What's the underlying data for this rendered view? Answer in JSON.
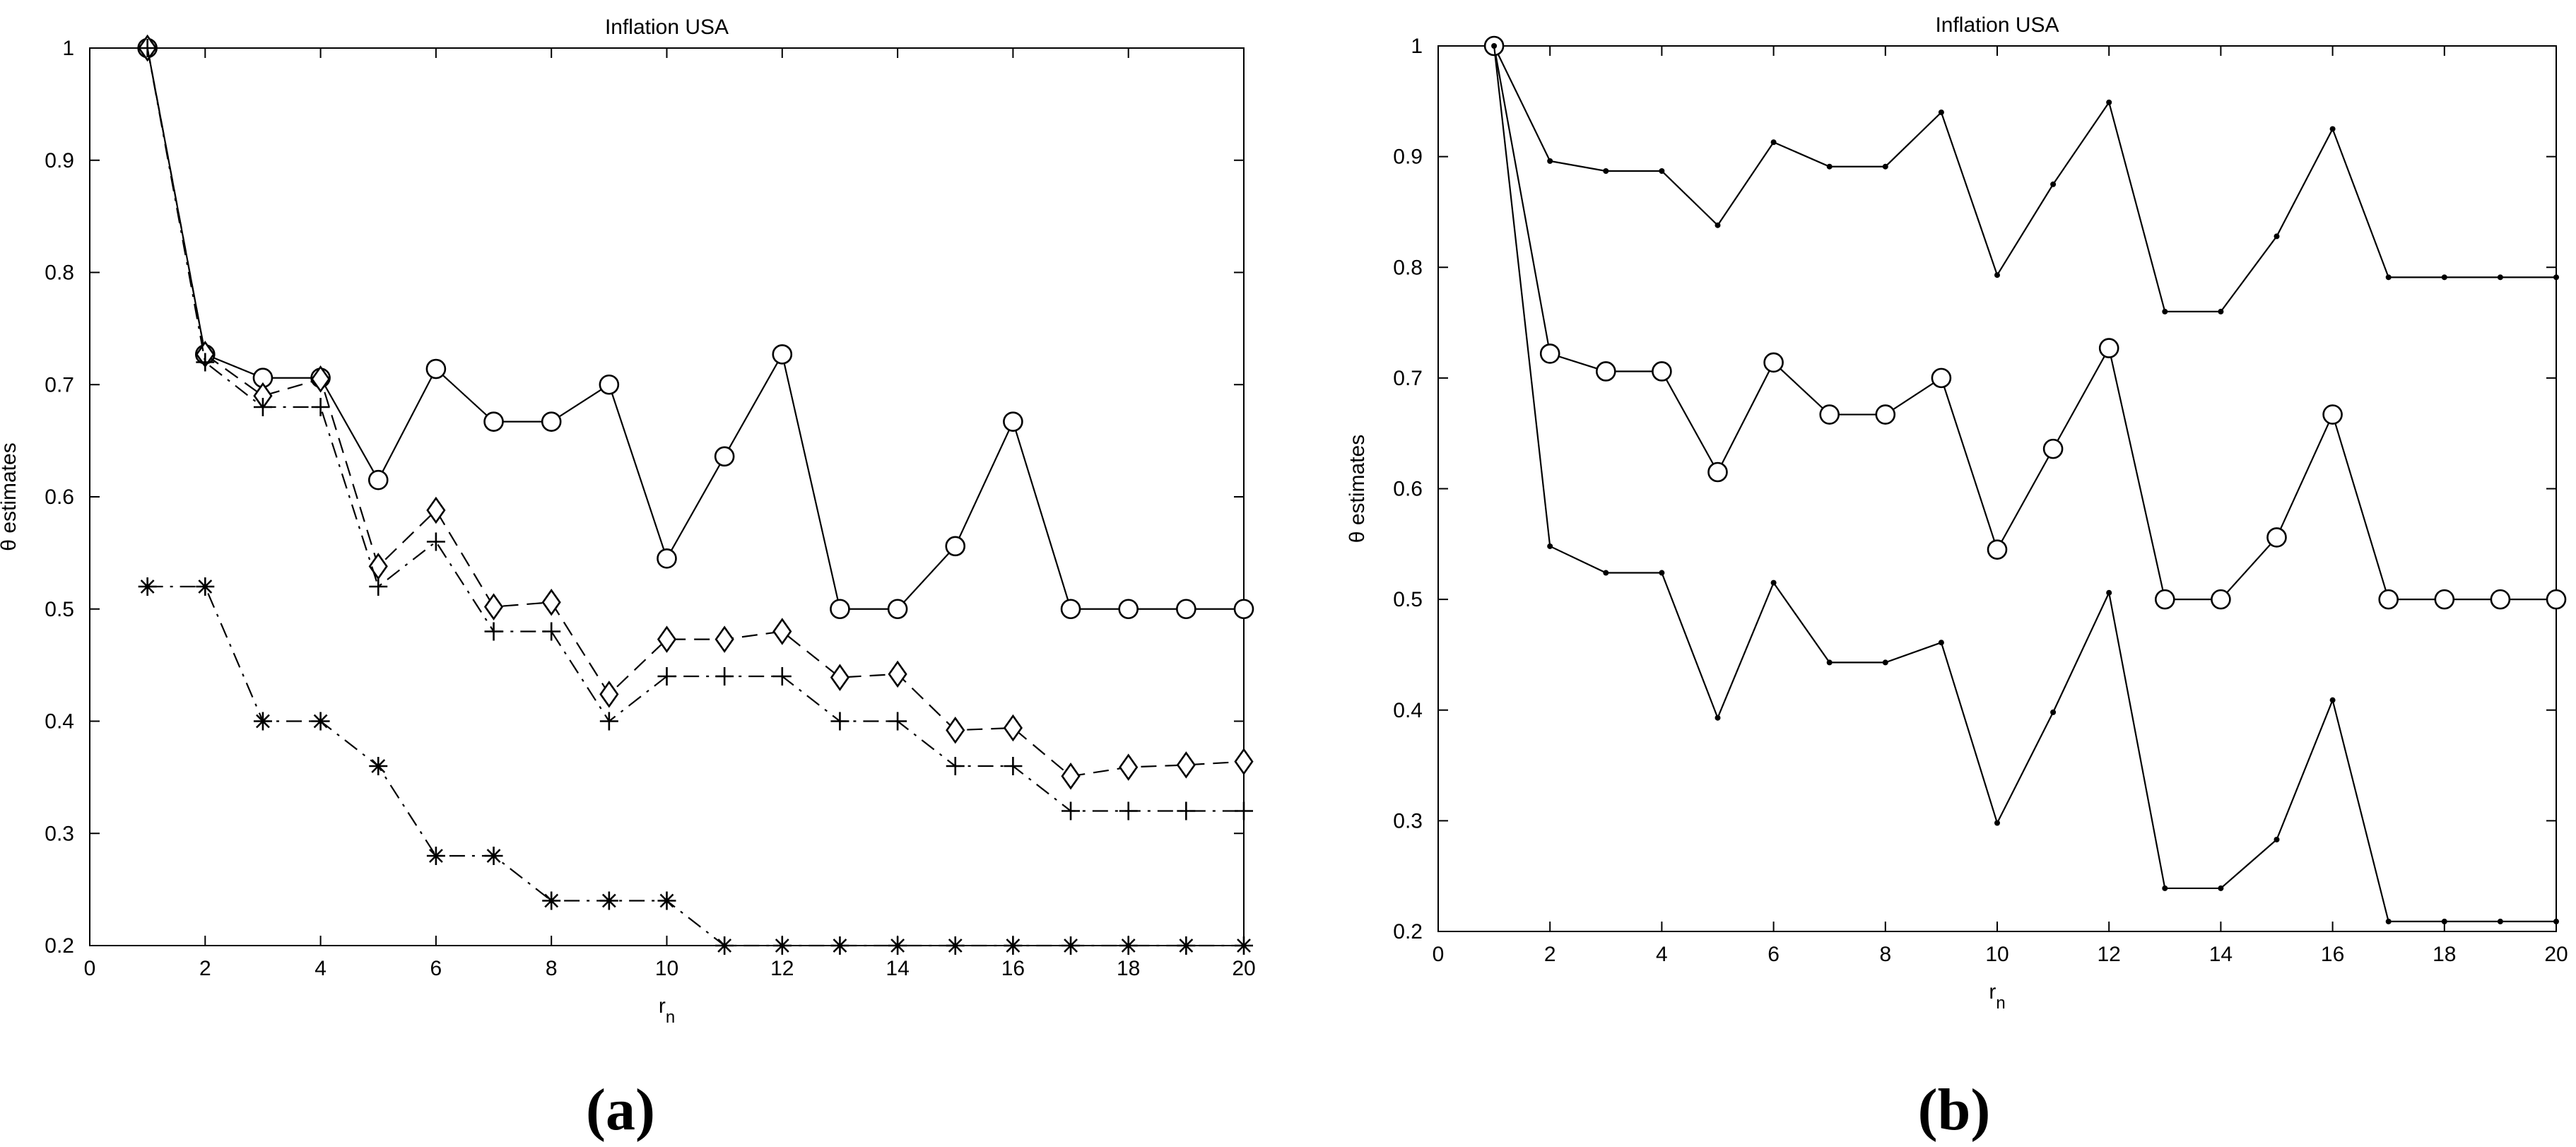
{
  "chart_data": [
    {
      "panel_label": "(a)",
      "type": "line",
      "title": "Inflation USA",
      "xlabel": "r",
      "xlabel_sub": "n",
      "ylabel": "θ estimates",
      "xlim": [
        0,
        20
      ],
      "ylim": [
        0.2,
        1
      ],
      "xticks": [
        0,
        2,
        4,
        6,
        8,
        10,
        12,
        14,
        16,
        18,
        20
      ],
      "yticks": [
        0.2,
        0.3,
        0.4,
        0.5,
        0.6,
        0.7,
        0.8,
        0.9,
        1
      ],
      "grid": false,
      "x": [
        1,
        2,
        3,
        4,
        5,
        6,
        7,
        8,
        9,
        10,
        11,
        12,
        13,
        14,
        15,
        16,
        17,
        18,
        19,
        20
      ],
      "series": [
        {
          "name": "circle-solid",
          "line": "solid",
          "marker": "circle",
          "values": [
            1.0,
            0.727,
            0.706,
            0.706,
            0.615,
            0.714,
            0.667,
            0.667,
            0.7,
            0.545,
            0.636,
            0.727,
            0.5,
            0.5,
            0.556,
            0.667,
            0.5,
            0.5,
            0.5,
            0.5
          ]
        },
        {
          "name": "diamond-dashed",
          "line": "dashed",
          "marker": "diamond",
          "values": [
            1.0,
            0.727,
            0.69,
            0.705,
            0.538,
            0.588,
            0.502,
            0.506,
            0.424,
            0.473,
            0.473,
            0.48,
            0.439,
            0.442,
            0.392,
            0.394,
            0.351,
            0.359,
            0.361,
            0.364
          ]
        },
        {
          "name": "plus-dashdot",
          "line": "dashdot",
          "marker": "plus",
          "values": [
            1.0,
            0.72,
            0.68,
            0.68,
            0.52,
            0.56,
            0.48,
            0.48,
            0.4,
            0.44,
            0.44,
            0.44,
            0.4,
            0.4,
            0.36,
            0.36,
            0.32,
            0.32,
            0.32,
            0.32
          ]
        },
        {
          "name": "star-dashdot",
          "line": "dashdot",
          "marker": "star",
          "values": [
            0.52,
            0.52,
            0.4,
            0.4,
            0.36,
            0.28,
            0.28,
            0.24,
            0.24,
            0.24,
            0.2,
            0.2,
            0.2,
            0.2,
            0.2,
            0.2,
            0.2,
            0.2,
            0.2,
            0.2
          ]
        }
      ]
    },
    {
      "panel_label": "(b)",
      "type": "line",
      "title": "Inflation USA",
      "xlabel": "r",
      "xlabel_sub": "n",
      "ylabel": "θ estimates",
      "xlim": [
        0,
        20
      ],
      "ylim": [
        0.2,
        1
      ],
      "xticks": [
        0,
        2,
        4,
        6,
        8,
        10,
        12,
        14,
        16,
        18,
        20
      ],
      "yticks": [
        0.2,
        0.3,
        0.4,
        0.5,
        0.6,
        0.7,
        0.8,
        0.9,
        1
      ],
      "grid": false,
      "x": [
        1,
        2,
        3,
        4,
        5,
        6,
        7,
        8,
        9,
        10,
        11,
        12,
        13,
        14,
        15,
        16,
        17,
        18,
        19,
        20
      ],
      "series": [
        {
          "name": "upper-dots",
          "line": "solid",
          "marker": "dot",
          "values": [
            1.0,
            0.896,
            0.887,
            0.887,
            0.838,
            0.913,
            0.891,
            0.891,
            0.94,
            0.793,
            0.875,
            0.949,
            0.76,
            0.76,
            0.828,
            0.925,
            0.791,
            0.791,
            0.791,
            0.791
          ]
        },
        {
          "name": "middle-circles",
          "line": "solid",
          "marker": "circle",
          "values": [
            1.0,
            0.722,
            0.706,
            0.706,
            0.615,
            0.714,
            0.667,
            0.667,
            0.7,
            0.545,
            0.636,
            0.727,
            0.5,
            0.5,
            0.556,
            0.667,
            0.5,
            0.5,
            0.5,
            0.5
          ]
        },
        {
          "name": "lower-dots",
          "line": "solid",
          "marker": "dot",
          "values": [
            1.0,
            0.548,
            0.524,
            0.524,
            0.393,
            0.515,
            0.443,
            0.443,
            0.461,
            0.298,
            0.398,
            0.506,
            0.239,
            0.239,
            0.283,
            0.409,
            0.209,
            0.209,
            0.209,
            0.209
          ]
        }
      ]
    }
  ]
}
